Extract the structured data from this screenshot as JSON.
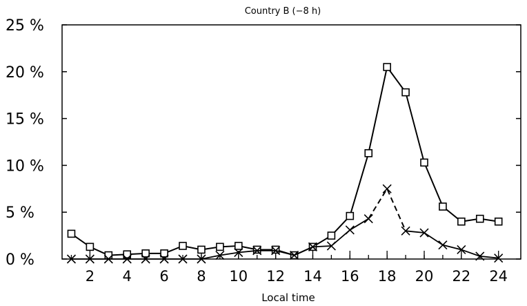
{
  "chart_data": {
    "type": "line",
    "title": "Country B (−8 h)",
    "xlabel": "Local time",
    "ylabel": "",
    "xlim": [
      0.5,
      25.2
    ],
    "ylim": [
      0,
      25
    ],
    "x": [
      1,
      2,
      3,
      4,
      5,
      6,
      7,
      8,
      9,
      10,
      11,
      12,
      13,
      14,
      15,
      16,
      17,
      18,
      19,
      20,
      21,
      22,
      23,
      24
    ],
    "x_tick_labels": [
      "2",
      "4",
      "6",
      "8",
      "10",
      "12",
      "14",
      "16",
      "18",
      "20",
      "22",
      "24"
    ],
    "y_tick_labels": [
      "0 %",
      "5 %",
      "10 %",
      "15 %",
      "20 %",
      "25 %"
    ],
    "grid": false,
    "series": [
      {
        "marker": "square",
        "line": "solid",
        "values": [
          2.7,
          1.3,
          0.4,
          0.5,
          0.6,
          0.6,
          1.4,
          1.0,
          1.3,
          1.4,
          1.0,
          1.0,
          0.4,
          1.3,
          2.5,
          4.6,
          11.3,
          20.5,
          17.8,
          10.3,
          5.6,
          4.0,
          4.3,
          4.0
        ]
      },
      {
        "marker": "cross",
        "line": "solid, dashed from 17 to 19",
        "values": [
          0.0,
          0.0,
          0.0,
          0.0,
          0.0,
          0.0,
          0.0,
          0.0,
          0.4,
          0.7,
          0.9,
          0.9,
          0.4,
          1.3,
          1.4,
          3.1,
          4.3,
          7.5,
          3.0,
          2.8,
          1.5,
          1.0,
          0.3,
          0.1
        ]
      }
    ]
  }
}
